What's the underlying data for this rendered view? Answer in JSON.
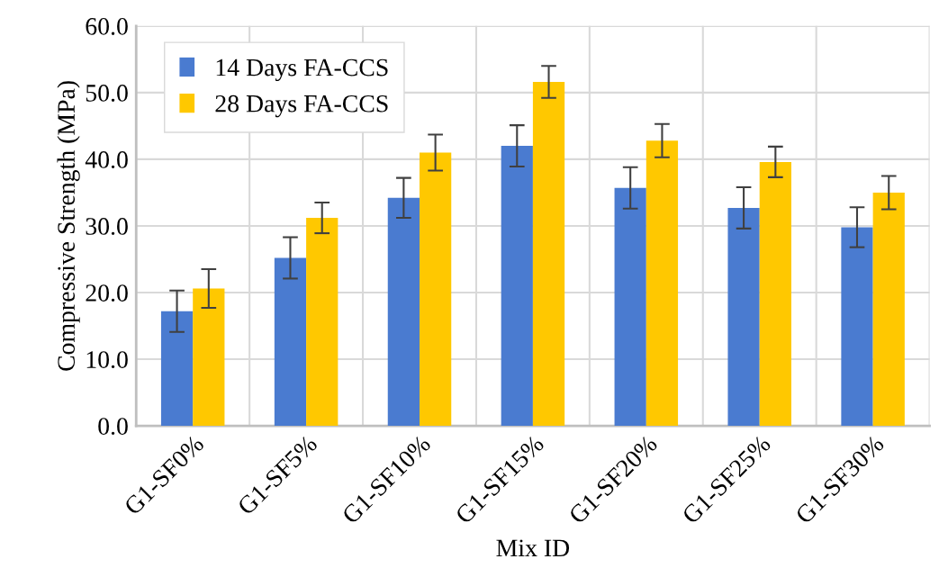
{
  "chart_data": {
    "type": "bar",
    "xlabel": "Mix ID",
    "ylabel": "Compressive Strength (MPa)",
    "categories": [
      "G1-SF0%",
      "G1-SF5%",
      "G1-SF10%",
      "G1-SF15%",
      "G1-SF20%",
      "G1-SF25%",
      "G1-SF30%"
    ],
    "series": [
      {
        "name": "14 Days FA-CCS",
        "color": "#4a7bd0",
        "values": [
          17.2,
          25.2,
          34.2,
          42.0,
          35.7,
          32.7,
          29.8
        ],
        "errors": [
          3.1,
          3.1,
          3.0,
          3.1,
          3.1,
          3.1,
          3.0
        ]
      },
      {
        "name": "28 Days FA-CCS",
        "color": "#ffc800",
        "values": [
          20.6,
          31.2,
          41.0,
          51.6,
          42.8,
          39.6,
          35.0
        ],
        "errors": [
          2.9,
          2.3,
          2.7,
          2.4,
          2.5,
          2.3,
          2.5
        ]
      }
    ],
    "ylim": [
      0,
      60
    ],
    "yticks": [
      {
        "value": 0,
        "label": "0.0"
      },
      {
        "value": 10,
        "label": "10.0"
      },
      {
        "value": 20,
        "label": "20.0"
      },
      {
        "value": 30,
        "label": "30.0"
      },
      {
        "value": 40,
        "label": "40.0"
      },
      {
        "value": 50,
        "label": "50.0"
      },
      {
        "value": 60,
        "label": "60.0"
      }
    ],
    "grid": true,
    "legend": "top left"
  }
}
